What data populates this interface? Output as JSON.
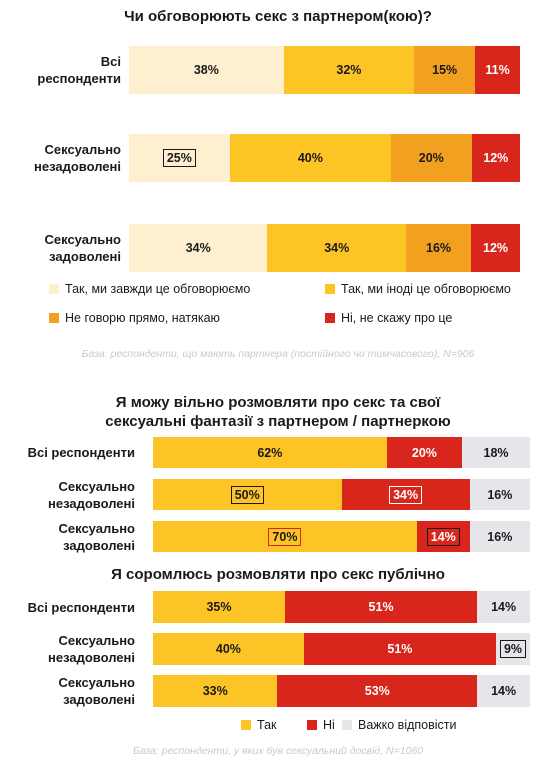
{
  "colors": {
    "always": "#fdefcf",
    "sometimes": "#fcc525",
    "hint": "#f2a01f",
    "no": "#d9261c",
    "hard": "#e6e6ea"
  },
  "chart_data": [
    {
      "type": "bar",
      "stacked": true,
      "orientation": "horizontal",
      "title": "Чи обговорюють секс з партнером(кою)?",
      "categories": [
        "Всі респонденти",
        "Сексуально незадоволені",
        "Сексуально задоволені"
      ],
      "series": [
        {
          "name": "Так, ми завжди це обговорюємо",
          "values": [
            38,
            25,
            34
          ]
        },
        {
          "name": "Так, ми іноді це обговорюємо",
          "values": [
            32,
            40,
            34
          ]
        },
        {
          "name": "Не говорю прямо, натякаю",
          "values": [
            15,
            20,
            16
          ]
        },
        {
          "name": "Ні, не скажу про це",
          "values": [
            11,
            12,
            12
          ]
        }
      ],
      "note": "База: респонденти, що мають партнера (постійного чи тимчасового), N=906"
    },
    {
      "type": "bar",
      "stacked": true,
      "orientation": "horizontal",
      "title": "Я можу вільно розмовляти про секс та свої сексуальні фантазії з партнером / партнеркою",
      "categories": [
        "Всі респонденти",
        "Сексуально незадоволені",
        "Сексуально задоволені"
      ],
      "series": [
        {
          "name": "Так",
          "values": [
            62,
            50,
            70
          ]
        },
        {
          "name": "Ні",
          "values": [
            20,
            34,
            14
          ]
        },
        {
          "name": "Важко відповісти",
          "values": [
            18,
            16,
            16
          ]
        }
      ]
    },
    {
      "type": "bar",
      "stacked": true,
      "orientation": "horizontal",
      "title": "Я соромлюсь розмовляти про секс публічно",
      "categories": [
        "Всі респонденти",
        "Сексуально незадоволені",
        "Сексуально задоволені"
      ],
      "series": [
        {
          "name": "Так",
          "values": [
            35,
            40,
            33
          ]
        },
        {
          "name": "Ні",
          "values": [
            51,
            51,
            53
          ]
        },
        {
          "name": "Важко відповісти",
          "values": [
            14,
            9,
            14
          ]
        }
      ],
      "note": "База: респонденти, у яких був сексуальний досвід, N=1060"
    }
  ],
  "chart1": {
    "title": "Чи обговорюють секс з партнером(кою)?",
    "rows": [
      {
        "label_lines": [
          "Всі",
          "респонденти"
        ],
        "values": [
          38,
          32,
          15,
          11
        ],
        "labels": [
          "38%",
          "32%",
          "15%",
          "11%"
        ],
        "boxed": [
          null,
          null,
          null,
          null
        ]
      },
      {
        "label_lines": [
          "Сексуально",
          "незадоволені"
        ],
        "values": [
          25,
          40,
          20,
          12
        ],
        "labels": [
          "25%",
          "40%",
          "20%",
          "12%"
        ],
        "boxed": [
          "dark",
          null,
          null,
          null
        ]
      },
      {
        "label_lines": [
          "Сексуально",
          "задоволені"
        ],
        "values": [
          34,
          34,
          16,
          12
        ],
        "labels": [
          "34%",
          "34%",
          "16%",
          "12%"
        ],
        "boxed": [
          null,
          null,
          null,
          null
        ]
      }
    ],
    "legend": [
      {
        "label": "Так, ми завжди це обговорюємо",
        "color_key": "always"
      },
      {
        "label": "Так, ми іноді це обговорюємо",
        "color_key": "sometimes"
      },
      {
        "label": "Не говорю прямо, натякаю",
        "color_key": "hint"
      },
      {
        "label": "Ні, не скажу про це",
        "color_key": "no"
      }
    ],
    "note": "База: респонденти, що мають партнера (постійного чи тимчасового), N=906"
  },
  "chart2": {
    "title_line1": "Я можу вільно розмовляти про секс та свої",
    "title_line2": "сексуальні фантазії з партнером / партнеркою",
    "rows": [
      {
        "label_lines": [
          "Всі респонденти"
        ],
        "values": [
          62,
          20,
          18
        ],
        "labels": [
          "62%",
          "20%",
          "18%"
        ],
        "boxed": [
          null,
          null,
          null
        ]
      },
      {
        "label_lines": [
          "Сексуально",
          "незадоволені"
        ],
        "values": [
          50,
          34,
          16
        ],
        "labels": [
          "50%",
          "34%",
          "16%"
        ],
        "boxed": [
          "dark",
          "white",
          null
        ]
      },
      {
        "label_lines": [
          "Сексуально",
          "задоволені"
        ],
        "values": [
          70,
          14,
          16
        ],
        "labels": [
          "70%",
          "14%",
          "16%"
        ],
        "boxed": [
          "red",
          "dark",
          null
        ]
      }
    ]
  },
  "chart3": {
    "title": "Я соромлюсь розмовляти про секс публічно",
    "rows": [
      {
        "label_lines": [
          "Всі респонденти"
        ],
        "values": [
          35,
          51,
          14
        ],
        "labels": [
          "35%",
          "51%",
          "14%"
        ],
        "boxed": [
          null,
          null,
          null
        ]
      },
      {
        "label_lines": [
          "Сексуально",
          "незадоволені"
        ],
        "values": [
          40,
          51,
          9
        ],
        "labels": [
          "40%",
          "51%",
          "9%"
        ],
        "boxed": [
          null,
          null,
          "dark"
        ]
      },
      {
        "label_lines": [
          "Сексуально",
          "задоволені"
        ],
        "values": [
          33,
          53,
          14
        ],
        "labels": [
          "33%",
          "53%",
          "14%"
        ],
        "boxed": [
          null,
          null,
          null
        ]
      }
    ],
    "legend": [
      {
        "label": "Так",
        "color_key": "sometimes"
      },
      {
        "label": "Ні",
        "color_key": "no"
      },
      {
        "label": "Важко відповісти",
        "color_key": "hard"
      }
    ],
    "note": "База: респонденти, у яких був сексуальний досвід, N=1060"
  }
}
